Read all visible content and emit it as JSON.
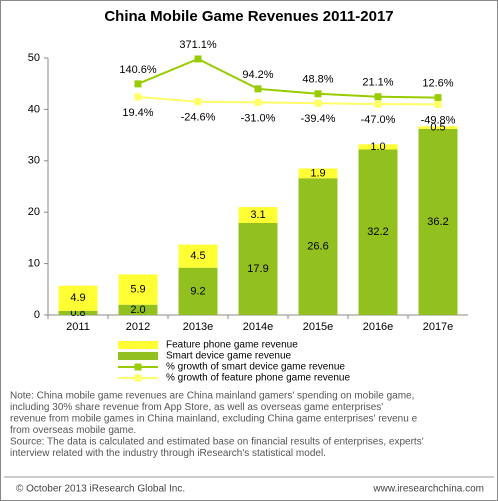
{
  "chart_data": {
    "type": "bar",
    "title": "China Mobile Game Revenues 2011-2017",
    "categories": [
      "2011",
      "2012",
      "2013e",
      "2014e",
      "2015e",
      "2016e",
      "2017e"
    ],
    "stacked": true,
    "series": [
      {
        "name": "Smart device game revenue",
        "color": "#92c01f",
        "type": "bar",
        "values": [
          0.8,
          2.0,
          9.2,
          17.9,
          26.6,
          32.2,
          36.2
        ],
        "value_labels": [
          "0.8",
          "2.0",
          "9.2",
          "17.9",
          "26.6",
          "32.2",
          "36.2"
        ]
      },
      {
        "name": "Feature phone game revenue",
        "color": "#ffff33",
        "type": "bar",
        "values": [
          4.9,
          5.9,
          4.5,
          3.1,
          1.9,
          1.0,
          0.5
        ],
        "value_labels": [
          "4.9",
          "5.9",
          "4.5",
          "3.1",
          "1.9",
          "1.0",
          "0.5"
        ]
      },
      {
        "name": "% growth of smart device game revenue",
        "color": "#99cc00",
        "type": "line",
        "axis": "y2",
        "values": [
          null,
          140.6,
          371.1,
          94.2,
          48.8,
          21.1,
          12.6
        ],
        "value_labels": [
          null,
          "140.6%",
          "371.1%",
          "94.2%",
          "48.8%",
          "21.1%",
          "12.6%"
        ]
      },
      {
        "name": "% growth of feature phone game revenue",
        "color": "#ffff66",
        "type": "line",
        "axis": "y2",
        "values": [
          null,
          19.4,
          -24.6,
          -31.0,
          -39.4,
          -47.0,
          -49.8
        ],
        "value_labels": [
          null,
          "19.4%",
          "-24.6%",
          "-31.0%",
          "-39.4%",
          "-47.0%",
          "-49.8%"
        ]
      }
    ],
    "legend_order": [
      1,
      0,
      2,
      3
    ],
    "ylim": [
      0,
      50
    ],
    "yticks": [
      0,
      10,
      20,
      30,
      40,
      50
    ],
    "y2lim": [
      -2000,
      380
    ],
    "grid": false,
    "note": [
      "Note: China mobile game revenues are China mainland gamers' spending on mobile game,",
      "including 30% share revenue from App Store, as well as overseas game enterprises'",
      "revenue from mobile games in China mainland, excluding China game enterprises' revenu e",
      "from overseas mobile game.",
      "Source: The data is calculated and estimated base on financial results of enterprises, experts'",
      "interview related with the industry through iResearch's statistical model."
    ],
    "footer_left": "© October 2013 iResearch Global Inc.",
    "footer_right": "www.iresearchchina.com"
  }
}
